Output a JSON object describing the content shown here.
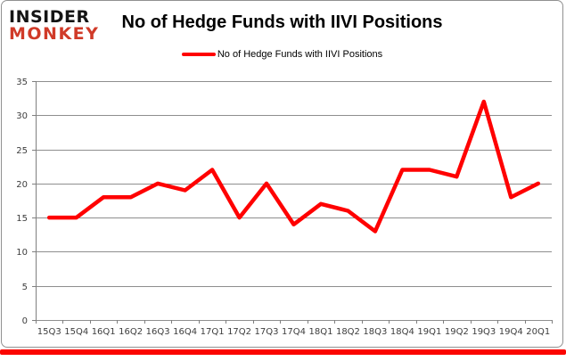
{
  "logo": {
    "line1": "INSIDER",
    "line2": "MONKEY"
  },
  "header": {
    "title": "No of Hedge Funds with IIVI Positions"
  },
  "legend": {
    "label": "No of Hedge Funds with IIVI Positions"
  },
  "colors": {
    "series_red": "#ff0000",
    "logo_red": "#d03a28",
    "gridline": "#8e8e8e",
    "axis_line": "#7f7f7f",
    "axis_text": "#3d3d3d",
    "border": "#919191",
    "accent_bar": "#fb0500"
  },
  "chart_data": {
    "type": "line",
    "title": "No of Hedge Funds with IIVI Positions",
    "categories": [
      "15Q3",
      "15Q4",
      "16Q1",
      "16Q2",
      "16Q3",
      "16Q4",
      "17Q1",
      "17Q2",
      "17Q3",
      "17Q4",
      "18Q1",
      "18Q2",
      "18Q3",
      "18Q4",
      "19Q1",
      "19Q2",
      "19Q3",
      "19Q4",
      "20Q1"
    ],
    "series": [
      {
        "name": "No of Hedge Funds with IIVI Positions",
        "color": "#ff0000",
        "values": [
          15,
          15,
          18,
          18,
          20,
          19,
          22,
          15,
          20,
          14,
          17,
          16,
          13,
          22,
          22,
          21,
          32,
          18,
          20
        ]
      }
    ],
    "xlabel": "",
    "ylabel": "",
    "ylim": [
      0,
      35
    ],
    "yticks": [
      0,
      5,
      10,
      15,
      20,
      25,
      30,
      35
    ],
    "grid": true,
    "legend_position": "top-center"
  }
}
